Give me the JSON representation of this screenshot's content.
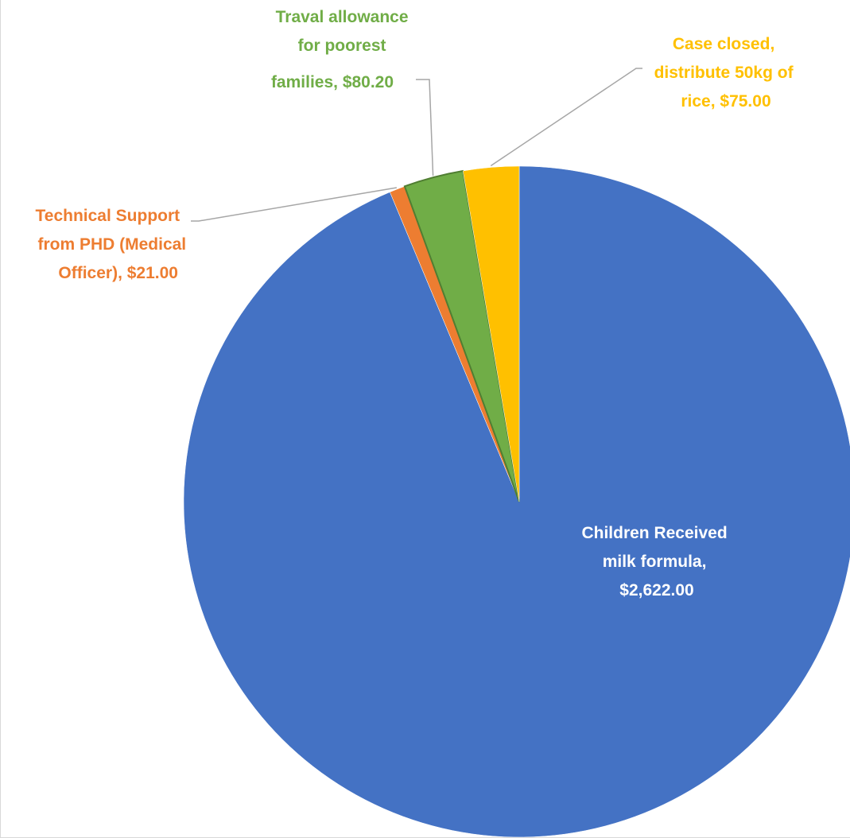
{
  "chart_data": {
    "type": "pie",
    "title": "",
    "start_angle_deg": 0,
    "direction": "clockwise",
    "slices": [
      {
        "name": "Children Received milk formula",
        "value": 2622.0,
        "value_label": "$2,622.00",
        "color": "#4472C4",
        "label_color": "#FFFFFF",
        "label_lines": [
          "Children Received",
          "milk formula,",
          "$2,622.00"
        ]
      },
      {
        "name": "Technical Support from PHD (Medical Officer)",
        "value": 21.0,
        "value_label": "$21.00",
        "color": "#ED7D31",
        "label_color": "#ED7D31",
        "label_lines": [
          "Technical Support",
          "from PHD (Medical",
          "Officer),  $21.00"
        ]
      },
      {
        "name": "Traval allowance for poorest families",
        "value": 80.2,
        "value_label": "$80.20",
        "color": "#70AD47",
        "label_color": "#70AD47",
        "label_lines": [
          "Traval allowance",
          "for poorest",
          "families,  $80.20"
        ]
      },
      {
        "name": "Case closed, distribute 50kg of rice",
        "value": 75.0,
        "value_label": "$75.00",
        "color": "#FFC000",
        "label_color": "#FFC000",
        "label_lines": [
          "Case closed,",
          "distribute 50kg of",
          "rice,  $75.00"
        ]
      }
    ],
    "leader_line_color": "#A6A6A6",
    "legend": "none"
  }
}
